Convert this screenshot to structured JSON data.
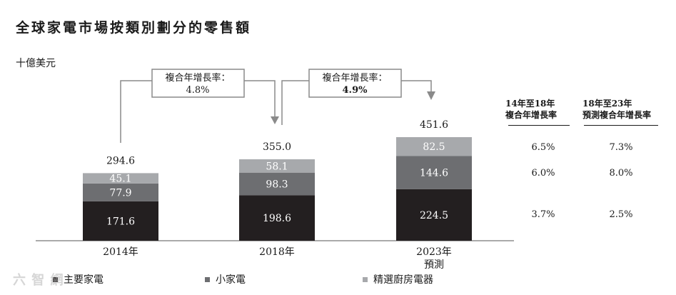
{
  "title": "全球家電市場按類別劃分的零售額",
  "unit": "十億美元",
  "cagr_boxes": [
    {
      "label": "複合年增長率：",
      "value": "4.8%"
    },
    {
      "label": "複合年增長率：",
      "value": "4.9%"
    }
  ],
  "right_table": {
    "headers": [
      [
        "14年至18年",
        "複合年增長率"
      ],
      [
        "18年至23年",
        "預測複合年增長率"
      ]
    ],
    "rows": [
      [
        "6.5%",
        "7.3%"
      ],
      [
        "6.0%",
        "8.0%"
      ],
      [
        "3.7%",
        "2.5%"
      ]
    ]
  },
  "legend": [
    "主要家電",
    "小家電",
    "精選廚房電器"
  ],
  "watermark": "六 智 網",
  "colors": {
    "major": "#231f20",
    "small": "#6d6e71",
    "kitchen": "#a7a9ac"
  },
  "chart_data": {
    "type": "bar",
    "stacked": true,
    "categories": [
      "2014年",
      "2018年",
      "2023年"
    ],
    "category_sublabels": [
      "",
      "",
      "預測"
    ],
    "series": [
      {
        "name": "主要家電",
        "values": [
          171.6,
          198.6,
          224.5
        ]
      },
      {
        "name": "小家電",
        "values": [
          77.9,
          98.3,
          144.6
        ]
      },
      {
        "name": "精選廚房電器",
        "values": [
          45.1,
          58.1,
          82.5
        ]
      }
    ],
    "totals": [
      294.6,
      355.0,
      451.6
    ],
    "total_labels": [
      "294.6",
      "355.0",
      "451.6"
    ],
    "ylabel": "十億美元",
    "ylim": [
      0,
      451.6
    ]
  }
}
